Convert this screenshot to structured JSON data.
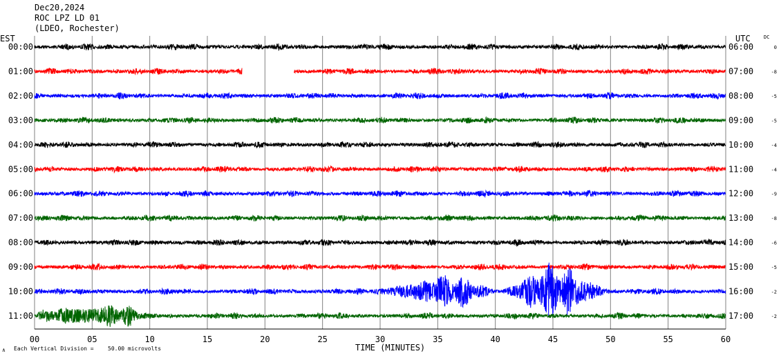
{
  "header": {
    "date": "Dec20,2024",
    "station": "ROC LPZ LD 01",
    "network": "(LDEO, Rochester)"
  },
  "labels": {
    "left_tz": "EST",
    "right_tz": "UTC",
    "dc": "DC"
  },
  "footer": {
    "xlabel": "TIME (MINUTES)",
    "scale_note": "Each Vertical Division =",
    "scale_value": "50.00 microvolts",
    "corner_mark": "∧"
  },
  "colors": {
    "black": "#000000",
    "red": "#ff0000",
    "blue": "#0000ff",
    "green": "#006400",
    "grid": "#808080"
  },
  "chart_data": {
    "type": "line",
    "xlabel": "TIME (MINUTES)",
    "xlim": [
      0,
      60
    ],
    "xticks": [
      "00",
      "05",
      "10",
      "15",
      "20",
      "25",
      "30",
      "35",
      "40",
      "45",
      "50",
      "55",
      "60"
    ],
    "grid": "vertical lines every 5 minutes",
    "series": [
      {
        "est": "00:00",
        "utc": "06:00",
        "dc": "0",
        "color": "black",
        "gap_minutes": null,
        "events": []
      },
      {
        "est": "01:00",
        "utc": "07:00",
        "dc": "-8",
        "color": "red",
        "gap_minutes": [
          18,
          22.5
        ],
        "events": []
      },
      {
        "est": "02:00",
        "utc": "08:00",
        "dc": "-5",
        "color": "blue",
        "gap_minutes": null,
        "events": []
      },
      {
        "est": "03:00",
        "utc": "09:00",
        "dc": "-5",
        "color": "green",
        "gap_minutes": null,
        "events": []
      },
      {
        "est": "04:00",
        "utc": "10:00",
        "dc": "-4",
        "color": "black",
        "gap_minutes": null,
        "events": []
      },
      {
        "est": "05:00",
        "utc": "11:00",
        "dc": "-4",
        "color": "red",
        "gap_minutes": null,
        "events": []
      },
      {
        "est": "06:00",
        "utc": "12:00",
        "dc": "-9",
        "color": "blue",
        "gap_minutes": null,
        "events": []
      },
      {
        "est": "07:00",
        "utc": "13:00",
        "dc": "-8",
        "color": "green",
        "gap_minutes": null,
        "events": []
      },
      {
        "est": "08:00",
        "utc": "14:00",
        "dc": "-6",
        "color": "black",
        "gap_minutes": null,
        "events": []
      },
      {
        "est": "09:00",
        "utc": "15:00",
        "dc": "-5",
        "color": "red",
        "gap_minutes": null,
        "events": []
      },
      {
        "est": "10:00",
        "utc": "16:00",
        "dc": "-2",
        "color": "blue",
        "gap_minutes": null,
        "events": [
          [
            30,
            40,
            2.0
          ],
          [
            40.5,
            50,
            3.2
          ]
        ]
      },
      {
        "est": "11:00",
        "utc": "17:00",
        "dc": "-2",
        "color": "green",
        "gap_minutes": null,
        "events": [
          [
            0,
            10,
            1.6
          ]
        ]
      }
    ]
  }
}
